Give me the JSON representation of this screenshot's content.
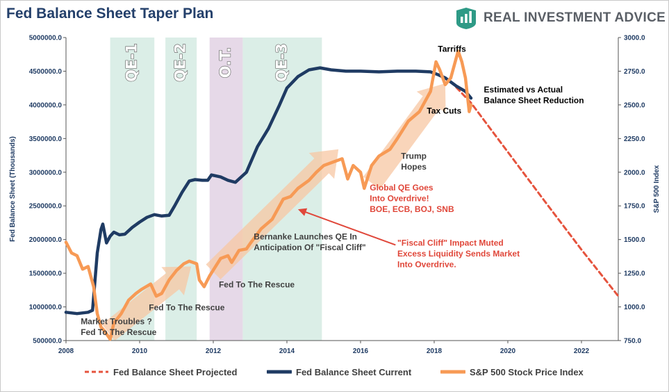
{
  "title": "Fed Balance Sheet Taper Plan",
  "brand": {
    "name": "REAL INVESTMENT ADVICE",
    "logo_icon": "chart-bars-icon",
    "logo_color": "#2e9a86"
  },
  "colors": {
    "balance_current": "#1f3b63",
    "balance_projected": "#e5533d",
    "sp500": "#f79a55",
    "arrow_fill": "#f7c7a3",
    "band_green": "#dbeee7",
    "band_purple": "#e6d9e8",
    "annotation_red": "#e0473a"
  },
  "chart_data": {
    "type": "line",
    "title": "Fed Balance Sheet Taper Plan",
    "xlabel": "",
    "ylabel": "Fed Balance Sheet (Thousands)",
    "y2label": "S&P 500 Index",
    "xlim": [
      2008,
      2023
    ],
    "ylim": [
      500000,
      5000000
    ],
    "y2lim": [
      750,
      3000
    ],
    "x_ticks": [
      "2008",
      "2010",
      "2012",
      "2014",
      "2016",
      "2018",
      "2020",
      "2022"
    ],
    "y_ticks": [
      "500000.0",
      "1000000.0",
      "1500000.0",
      "2000000.0",
      "2500000.0",
      "3000000.0",
      "3500000.0",
      "4000000.0",
      "4500000.0",
      "5000000.0"
    ],
    "y2_ticks": [
      "750.0",
      "1000.0",
      "1250.0",
      "1500.0",
      "1750.0",
      "2000.0",
      "2250.0",
      "2500.0",
      "2750.0",
      "3000.0"
    ],
    "grid": false,
    "legend_position": "bottom",
    "bands": [
      {
        "label": "QE-1",
        "start": 2009.2,
        "end": 2010.4,
        "color": "green"
      },
      {
        "label": "QE-2",
        "start": 2010.7,
        "end": 2011.55,
        "color": "green"
      },
      {
        "label": "O.T.",
        "start": 2011.9,
        "end": 2012.8,
        "color": "purple"
      },
      {
        "label": "QE-3",
        "start": 2012.8,
        "end": 2014.95,
        "color": "green"
      }
    ],
    "series": [
      {
        "name": "Fed Balance Sheet Projected",
        "axis": "left",
        "style": "dashed",
        "x": [
          2018.6,
          2019.0,
          2020.0,
          2021.0,
          2022.0,
          2023.0
        ],
        "y": [
          4260000,
          4030000,
          3300000,
          2570000,
          1850000,
          1160000
        ]
      },
      {
        "name": "Fed Balance Sheet Current",
        "axis": "left",
        "style": "solid",
        "x": [
          2008.0,
          2008.3,
          2008.6,
          2008.72,
          2008.85,
          2008.95,
          2009.0,
          2009.1,
          2009.2,
          2009.3,
          2009.45,
          2009.6,
          2009.8,
          2010.0,
          2010.2,
          2010.4,
          2010.6,
          2010.8,
          2010.95,
          2011.15,
          2011.35,
          2011.5,
          2011.7,
          2011.85,
          2011.95,
          2012.2,
          2012.4,
          2012.6,
          2012.8,
          2012.9,
          2013.2,
          2013.5,
          2013.8,
          2014.0,
          2014.3,
          2014.6,
          2014.9,
          2015.2,
          2015.6,
          2016.0,
          2016.5,
          2017.0,
          2017.5,
          2017.9,
          2018.1,
          2018.3,
          2018.6,
          2018.85,
          2019.0
        ],
        "y": [
          920000,
          900000,
          920000,
          950000,
          1800000,
          2150000,
          2230000,
          1950000,
          2050000,
          2110000,
          2070000,
          2080000,
          2180000,
          2260000,
          2330000,
          2370000,
          2350000,
          2360000,
          2500000,
          2700000,
          2870000,
          2890000,
          2880000,
          2880000,
          2960000,
          2930000,
          2880000,
          2850000,
          2950000,
          3000000,
          3380000,
          3650000,
          4000000,
          4250000,
          4420000,
          4520000,
          4550000,
          4520000,
          4500000,
          4500000,
          4490000,
          4500000,
          4500000,
          4490000,
          4450000,
          4400000,
          4280000,
          4200000,
          4100000
        ]
      },
      {
        "name": "S&P 500 Stock Price Index",
        "axis": "right",
        "style": "solid",
        "x": [
          2008.0,
          2008.15,
          2008.3,
          2008.45,
          2008.6,
          2008.75,
          2008.85,
          2008.95,
          2009.05,
          2009.2,
          2009.3,
          2009.5,
          2009.7,
          2009.9,
          2010.05,
          2010.3,
          2010.45,
          2010.6,
          2010.8,
          2011.0,
          2011.2,
          2011.35,
          2011.55,
          2011.62,
          2011.75,
          2011.9,
          2012.2,
          2012.4,
          2012.5,
          2012.7,
          2012.9,
          2013.0,
          2013.3,
          2013.6,
          2013.9,
          2014.1,
          2014.3,
          2014.6,
          2014.8,
          2015.0,
          2015.3,
          2015.5,
          2015.65,
          2015.8,
          2016.0,
          2016.1,
          2016.3,
          2016.5,
          2016.8,
          2017.0,
          2017.3,
          2017.6,
          2017.9,
          2018.05,
          2018.15,
          2018.3,
          2018.45,
          2018.65,
          2018.75,
          2018.85,
          2018.95,
          2019.0
        ],
        "y": [
          1480,
          1400,
          1380,
          1280,
          1300,
          1150,
          950,
          850,
          820,
          760,
          880,
          950,
          1050,
          1100,
          1130,
          1170,
          1080,
          1100,
          1200,
          1270,
          1320,
          1340,
          1320,
          1200,
          1150,
          1230,
          1360,
          1380,
          1330,
          1420,
          1430,
          1470,
          1580,
          1650,
          1800,
          1820,
          1880,
          1940,
          2000,
          2050,
          2080,
          2100,
          1950,
          2050,
          2000,
          1880,
          2050,
          2120,
          2170,
          2250,
          2380,
          2450,
          2600,
          2820,
          2760,
          2650,
          2700,
          2900,
          2820,
          2700,
          2450,
          2500
        ]
      }
    ],
    "annotations": [
      {
        "text": "Tarriffs",
        "x": 2018.1,
        "y": 2895,
        "axis": "right",
        "style": "black"
      },
      {
        "text": "Estimated vs Actual",
        "x": 2019.35,
        "y": 2592,
        "axis": "right",
        "style": "black"
      },
      {
        "text": "Balance Sheet Reduction",
        "x": 2019.35,
        "y": 2512,
        "axis": "right",
        "style": "black"
      },
      {
        "text": "Tax Cuts",
        "x": 2017.8,
        "y": 2435,
        "axis": "right",
        "style": "black"
      },
      {
        "text": "Trump",
        "x": 2017.1,
        "y": 2100,
        "axis": "right",
        "style": "dark"
      },
      {
        "text": "Hopes",
        "x": 2017.1,
        "y": 2020,
        "axis": "right",
        "style": "dark"
      },
      {
        "text": "Global QE Goes",
        "x": 2016.25,
        "y": 1865,
        "axis": "right",
        "style": "red"
      },
      {
        "text": "Into Overdrive!",
        "x": 2016.25,
        "y": 1785,
        "axis": "right",
        "style": "red"
      },
      {
        "text": "BOE, ECB, BOJ, SNB",
        "x": 2016.25,
        "y": 1705,
        "axis": "right",
        "style": "red"
      },
      {
        "text": "Bernanke Launches QE In",
        "x": 2013.1,
        "y": 1500,
        "axis": "right",
        "style": "dark"
      },
      {
        "text": "Anticipation Of \"Fiscal Cliff\"",
        "x": 2013.1,
        "y": 1420,
        "axis": "right",
        "style": "dark"
      },
      {
        "text": "\"Fiscal Cliff\" Impact Muted",
        "x": 2017.0,
        "y": 1455,
        "axis": "right",
        "style": "red"
      },
      {
        "text": "Excess Liquidity Sends Market",
        "x": 2017.0,
        "y": 1375,
        "axis": "right",
        "style": "red"
      },
      {
        "text": "Into Overdrive.",
        "x": 2017.0,
        "y": 1295,
        "axis": "right",
        "style": "red"
      },
      {
        "text": "Fed To The Rescue",
        "x": 2012.15,
        "y": 1145,
        "axis": "right",
        "style": "dark"
      },
      {
        "text": "Fed To The Rescue",
        "x": 2010.25,
        "y": 975,
        "axis": "right",
        "style": "dark"
      },
      {
        "text": "Market Troubles ?",
        "x": 2008.4,
        "y": 872,
        "axis": "right",
        "style": "dark"
      },
      {
        "text": "Fed To The Rescue",
        "x": 2008.4,
        "y": 792,
        "axis": "right",
        "style": "dark"
      }
    ],
    "trend_arrows": [
      {
        "x1": 2009.15,
        "y1": 810,
        "x2": 2011.4,
        "y2": 1300,
        "axis": "right"
      },
      {
        "x1": 2012.0,
        "y1": 1260,
        "x2": 2015.4,
        "y2": 2170,
        "axis": "right"
      },
      {
        "x1": 2016.3,
        "y1": 1920,
        "x2": 2018.3,
        "y2": 2660,
        "axis": "right"
      }
    ],
    "callout_arrow": {
      "from_x": 2016.95,
      "from_y": 1460,
      "to_x": 2014.3,
      "to_y": 1725,
      "axis": "right"
    }
  }
}
